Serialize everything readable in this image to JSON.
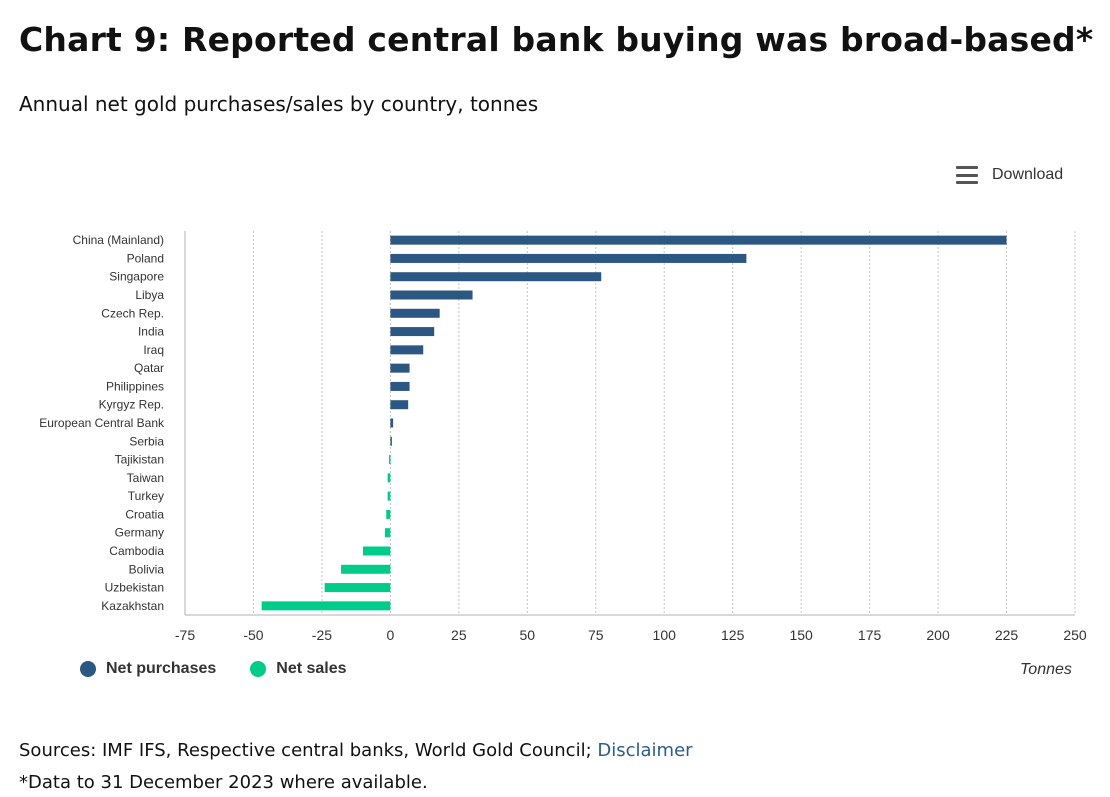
{
  "title": "Chart 9: Reported central bank buying was broad-based*",
  "subtitle": "Annual net gold purchases/sales by country, tonnes",
  "download_label": "Download",
  "unit_label": "Tonnes",
  "sources_text": "Sources: IMF IFS, Respective central banks, World Gold Council; ",
  "disclaimer_link": "Disclaimer",
  "footnote": "*Data to 31 December 2023 where available.",
  "colors": {
    "net_purchases": "#2b5782",
    "net_sales": "#00cc8a",
    "link": "#2a5d8a"
  },
  "chart_data": {
    "type": "bar",
    "orientation": "horizontal",
    "title": "Chart 9: Reported central bank buying was broad-based*",
    "subtitle": "Annual net gold purchases/sales by country, tonnes",
    "xlabel": "Tonnes",
    "xlim": [
      -75,
      250
    ],
    "xticks": [
      -75,
      -50,
      -25,
      0,
      25,
      50,
      75,
      100,
      125,
      150,
      175,
      200,
      225,
      250
    ],
    "grid": "vertical dotted",
    "legend_position": "bottom-left",
    "categories": [
      "China (Mainland)",
      "Poland",
      "Singapore",
      "Libya",
      "Czech Rep.",
      "India",
      "Iraq",
      "Qatar",
      "Philippines",
      "Kyrgyz Rep.",
      "European Central Bank",
      "Serbia",
      "Tajikistan",
      "Taiwan",
      "Turkey",
      "Croatia",
      "Germany",
      "Cambodia",
      "Bolivia",
      "Uzbekistan",
      "Kazakhstan"
    ],
    "values": [
      225,
      130,
      77,
      30,
      18,
      16,
      12,
      7,
      7,
      6.5,
      1,
      0.5,
      -0.5,
      -1,
      -1,
      -1.5,
      -2,
      -10,
      -18,
      -24,
      -47
    ],
    "series": [
      {
        "name": "Net purchases",
        "color": "#2b5782"
      },
      {
        "name": "Net sales",
        "color": "#00cc8a"
      }
    ]
  }
}
